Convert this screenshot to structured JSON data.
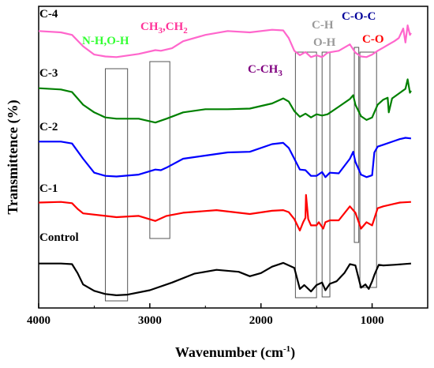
{
  "chart_data": {
    "type": "line",
    "xlabel_main": "Wavenumber (cm",
    "xlabel_sup": "-1",
    "xlabel_end": ")",
    "ylabel": "Transmittence (%)",
    "xlim": [
      4000,
      500
    ],
    "x_ticks": [
      "4000",
      "3000",
      "2000",
      "1000"
    ],
    "x_tick_values": [
      4000,
      3000,
      2000,
      1000
    ],
    "series": [
      {
        "name": "Control",
        "color": "#000000",
        "points": [
          [
            4000,
            5.0
          ],
          [
            3800,
            5.0
          ],
          [
            3700,
            4.9
          ],
          [
            3650,
            3.5
          ],
          [
            3600,
            1.7
          ],
          [
            3500,
            0.7
          ],
          [
            3400,
            0.2
          ],
          [
            3300,
            0.0
          ],
          [
            3200,
            0.1
          ],
          [
            3000,
            0.8
          ],
          [
            2800,
            2.0
          ],
          [
            2600,
            3.4
          ],
          [
            2400,
            4.0
          ],
          [
            2200,
            3.7
          ],
          [
            2100,
            3.0
          ],
          [
            2000,
            3.5
          ],
          [
            1900,
            4.5
          ],
          [
            1800,
            5.1
          ],
          [
            1700,
            4.3
          ],
          [
            1650,
            1.0
          ],
          [
            1610,
            1.6
          ],
          [
            1550,
            0.6
          ],
          [
            1500,
            1.6
          ],
          [
            1450,
            2.0
          ],
          [
            1420,
            0.8
          ],
          [
            1380,
            1.8
          ],
          [
            1320,
            2.2
          ],
          [
            1250,
            3.5
          ],
          [
            1200,
            4.9
          ],
          [
            1150,
            4.7
          ],
          [
            1100,
            1.2
          ],
          [
            1060,
            1.7
          ],
          [
            1030,
            1.0
          ],
          [
            1000,
            2.2
          ],
          [
            980,
            3.2
          ],
          [
            960,
            4.0
          ],
          [
            940,
            4.8
          ],
          [
            900,
            4.7
          ],
          [
            800,
            4.8
          ],
          [
            650,
            5.0
          ]
        ]
      },
      {
        "name": "C-1",
        "color": "#ff0000",
        "points": [
          [
            4000,
            14.6
          ],
          [
            3800,
            14.7
          ],
          [
            3700,
            14.5
          ],
          [
            3650,
            13.6
          ],
          [
            3600,
            12.9
          ],
          [
            3400,
            12.5
          ],
          [
            3300,
            12.3
          ],
          [
            3100,
            12.5
          ],
          [
            2950,
            11.7
          ],
          [
            2850,
            12.5
          ],
          [
            2700,
            13.0
          ],
          [
            2400,
            13.4
          ],
          [
            2100,
            12.8
          ],
          [
            1900,
            13.3
          ],
          [
            1800,
            13.4
          ],
          [
            1750,
            13.1
          ],
          [
            1700,
            12.0
          ],
          [
            1650,
            10.2
          ],
          [
            1620,
            11.5
          ],
          [
            1600,
            12.2
          ],
          [
            1595,
            15.8
          ],
          [
            1575,
            12.0
          ],
          [
            1550,
            11.0
          ],
          [
            1500,
            11.0
          ],
          [
            1480,
            11.5
          ],
          [
            1440,
            10.5
          ],
          [
            1420,
            11.5
          ],
          [
            1380,
            11.8
          ],
          [
            1300,
            11.8
          ],
          [
            1200,
            14.0
          ],
          [
            1150,
            13.0
          ],
          [
            1100,
            10.5
          ],
          [
            1050,
            11.5
          ],
          [
            1000,
            11.0
          ],
          [
            950,
            13.7
          ],
          [
            900,
            14.0
          ],
          [
            800,
            14.4
          ],
          [
            750,
            14.6
          ],
          [
            650,
            14.7
          ]
        ]
      },
      {
        "name": "C-2",
        "color": "#0000ff",
        "points": [
          [
            4000,
            24.2
          ],
          [
            3800,
            24.2
          ],
          [
            3700,
            23.9
          ],
          [
            3600,
            21.5
          ],
          [
            3500,
            19.3
          ],
          [
            3400,
            18.8
          ],
          [
            3300,
            18.7
          ],
          [
            3100,
            19.0
          ],
          [
            2950,
            19.8
          ],
          [
            2900,
            19.7
          ],
          [
            2850,
            20.1
          ],
          [
            2700,
            21.5
          ],
          [
            2500,
            22.0
          ],
          [
            2300,
            22.5
          ],
          [
            2100,
            22.6
          ],
          [
            1900,
            23.8
          ],
          [
            1800,
            24.0
          ],
          [
            1750,
            23.2
          ],
          [
            1700,
            21.5
          ],
          [
            1650,
            19.8
          ],
          [
            1600,
            19.7
          ],
          [
            1550,
            18.8
          ],
          [
            1500,
            18.8
          ],
          [
            1450,
            19.4
          ],
          [
            1420,
            18.6
          ],
          [
            1380,
            19.3
          ],
          [
            1300,
            19.2
          ],
          [
            1200,
            21.5
          ],
          [
            1170,
            22.6
          ],
          [
            1150,
            21.0
          ],
          [
            1100,
            19.0
          ],
          [
            1050,
            18.6
          ],
          [
            1000,
            18.9
          ],
          [
            980,
            22.5
          ],
          [
            950,
            23.4
          ],
          [
            900,
            23.7
          ],
          [
            800,
            24.3
          ],
          [
            750,
            24.6
          ],
          [
            700,
            24.8
          ],
          [
            650,
            24.7
          ]
        ]
      },
      {
        "name": "C-3",
        "color": "#008000",
        "points": [
          [
            4000,
            32.6
          ],
          [
            3800,
            32.4
          ],
          [
            3700,
            32.0
          ],
          [
            3600,
            30.0
          ],
          [
            3500,
            28.8
          ],
          [
            3400,
            28.0
          ],
          [
            3300,
            27.8
          ],
          [
            3100,
            27.8
          ],
          [
            2950,
            27.2
          ],
          [
            2850,
            27.8
          ],
          [
            2700,
            28.8
          ],
          [
            2500,
            29.3
          ],
          [
            2300,
            29.3
          ],
          [
            2100,
            29.4
          ],
          [
            1900,
            30.2
          ],
          [
            1800,
            31.0
          ],
          [
            1750,
            30.5
          ],
          [
            1700,
            29.0
          ],
          [
            1650,
            28.1
          ],
          [
            1600,
            28.6
          ],
          [
            1550,
            28.0
          ],
          [
            1500,
            28.5
          ],
          [
            1450,
            28.3
          ],
          [
            1400,
            28.5
          ],
          [
            1300,
            29.7
          ],
          [
            1200,
            30.9
          ],
          [
            1170,
            31.5
          ],
          [
            1150,
            30.0
          ],
          [
            1100,
            28.2
          ],
          [
            1050,
            27.6
          ],
          [
            1000,
            28.0
          ],
          [
            950,
            30.0
          ],
          [
            900,
            30.8
          ],
          [
            860,
            31.1
          ],
          [
            850,
            28.8
          ],
          [
            820,
            31.0
          ],
          [
            700,
            32.5
          ],
          [
            680,
            34.0
          ],
          [
            660,
            31.9
          ],
          [
            650,
            32.2
          ]
        ]
      },
      {
        "name": "C-4",
        "color": "#ff66cc",
        "points": [
          [
            4000,
            41.6
          ],
          [
            3800,
            41.4
          ],
          [
            3700,
            41.0
          ],
          [
            3600,
            39.2
          ],
          [
            3500,
            37.9
          ],
          [
            3400,
            37.6
          ],
          [
            3300,
            37.5
          ],
          [
            3100,
            38.0
          ],
          [
            2950,
            38.6
          ],
          [
            2900,
            38.5
          ],
          [
            2800,
            38.9
          ],
          [
            2700,
            40.0
          ],
          [
            2500,
            41.0
          ],
          [
            2300,
            41.6
          ],
          [
            2100,
            41.4
          ],
          [
            1900,
            41.8
          ],
          [
            1800,
            41.7
          ],
          [
            1750,
            40.5
          ],
          [
            1700,
            38.5
          ],
          [
            1650,
            37.8
          ],
          [
            1600,
            38.3
          ],
          [
            1550,
            37.5
          ],
          [
            1500,
            37.8
          ],
          [
            1450,
            37.5
          ],
          [
            1400,
            38.2
          ],
          [
            1300,
            38.5
          ],
          [
            1200,
            39.5
          ],
          [
            1150,
            38.2
          ],
          [
            1100,
            37.6
          ],
          [
            1050,
            37.5
          ],
          [
            1000,
            37.9
          ],
          [
            950,
            38.5
          ],
          [
            900,
            39.0
          ],
          [
            850,
            39.5
          ],
          [
            800,
            40.0
          ],
          [
            760,
            40.5
          ],
          [
            720,
            42.0
          ],
          [
            700,
            39.8
          ],
          [
            680,
            42.5
          ],
          [
            660,
            41.0
          ],
          [
            650,
            41.3
          ]
        ]
      }
    ],
    "series_labels": [
      {
        "text": "Control",
        "series": "Control"
      },
      {
        "text": "C-1",
        "series": "C-1"
      },
      {
        "text": "C-2",
        "series": "C-2"
      },
      {
        "text": "C-3",
        "series": "C-3"
      },
      {
        "text": "C-4",
        "series": "C-4"
      }
    ],
    "bands": [
      {
        "from": 3400,
        "to": 3200,
        "label": "N-H,O-H",
        "color": "#33ff33"
      },
      {
        "from": 3000,
        "to": 2820,
        "label": "CH3,CH2",
        "color": "#ff3399"
      },
      {
        "from": 1690,
        "to": 1500,
        "label": "C-CH3",
        "color": "#800080"
      },
      {
        "from": 1450,
        "to": 1380,
        "label": "C-H / O-H",
        "color": "#999999"
      },
      {
        "from": 1160,
        "to": 1120,
        "label": "C-O-C",
        "color": "#000099"
      },
      {
        "from": 1110,
        "to": 960,
        "label": "C-O",
        "color": "#ff0000"
      }
    ],
    "band_labels": {
      "nh": "N-H,O-H",
      "ch_main": "CH",
      "ch_s1": "3",
      "ch_mid": ",CH",
      "ch_s2": "2",
      "cch_main": "C-CH",
      "cch_s": "3",
      "ch": "C-H",
      "oh": "O-H",
      "coc": "C-O-C",
      "co": "C-O"
    },
    "colors": {
      "nh": "#33ff33",
      "ch": "#ff3399",
      "cch": "#800080",
      "gray": "#999999",
      "coc": "#000099",
      "co": "#ff0000"
    },
    "grid": false
  }
}
